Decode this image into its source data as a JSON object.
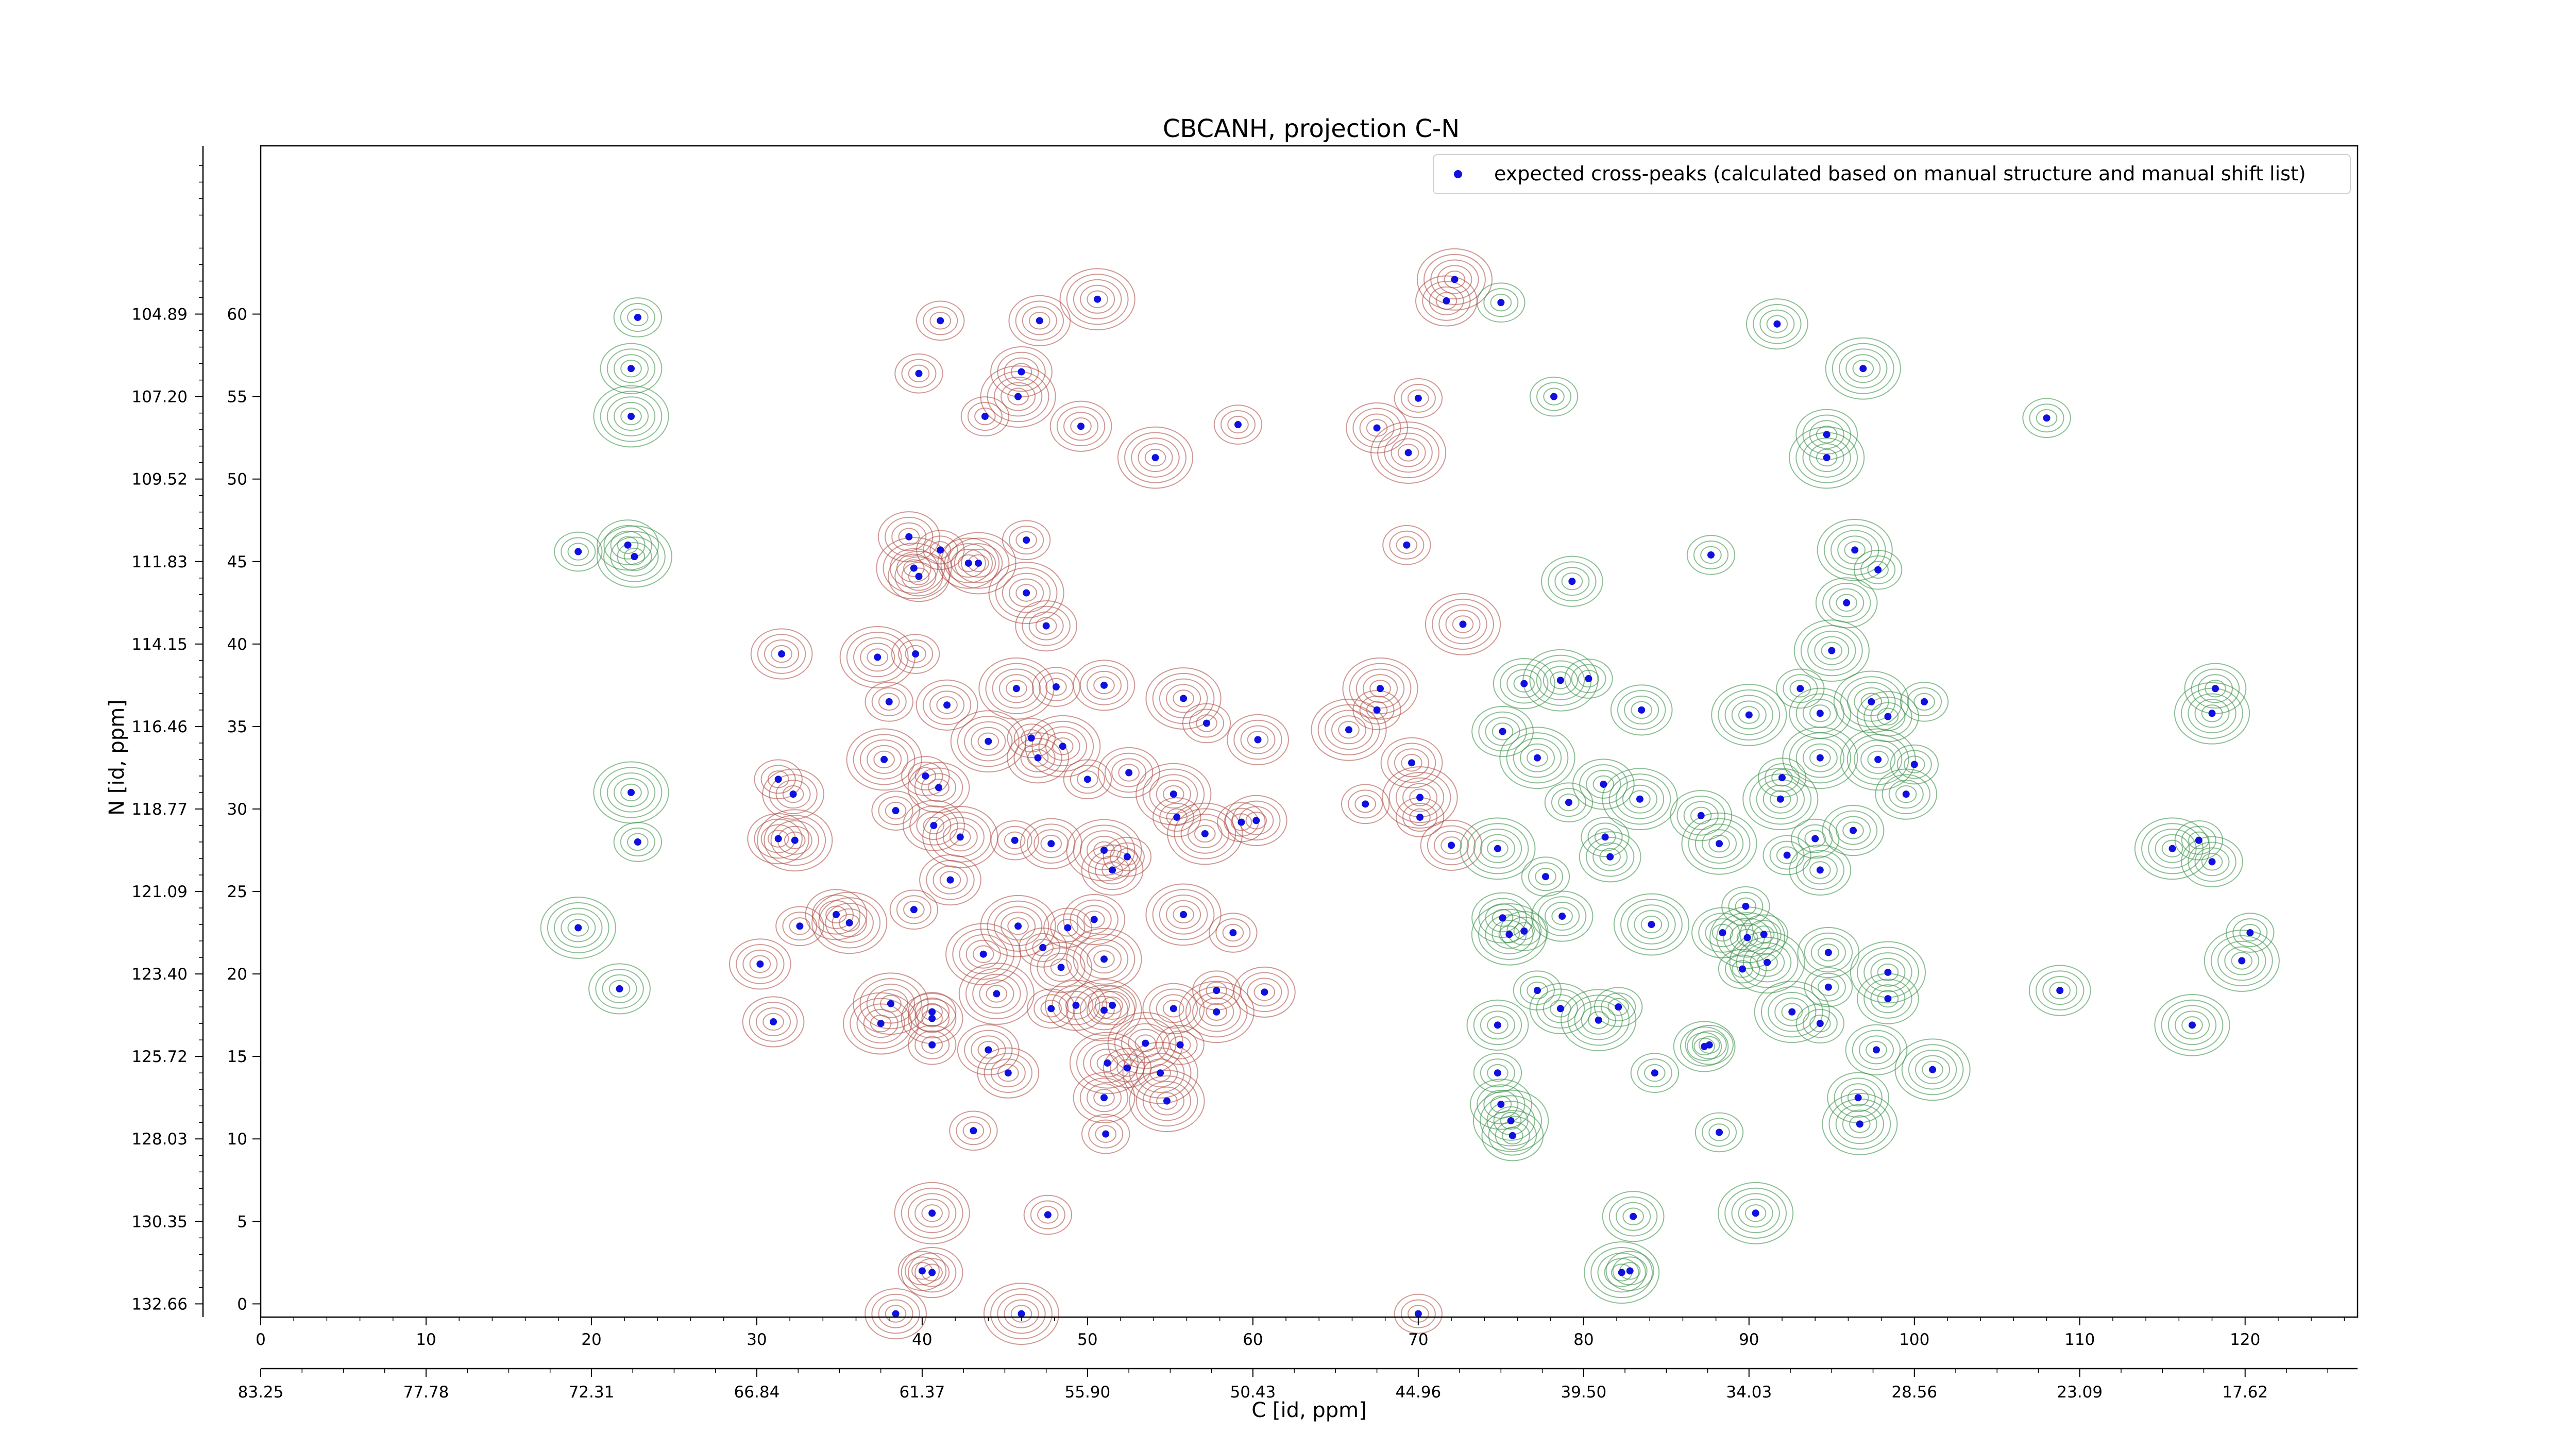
{
  "chart_data": {
    "type": "scatter",
    "title": "CBCANH, projection C-N",
    "xlabel": "C [id, ppm]",
    "ylabel": "N [id, ppm]",
    "xlim": [
      0,
      126.8
    ],
    "ylim": [
      -0.8,
      70.2
    ],
    "x_ticks": [
      0,
      10,
      20,
      30,
      40,
      50,
      60,
      70,
      80,
      90,
      100,
      110,
      120
    ],
    "x_tick_labels_ppm": [
      "83.25",
      "77.78",
      "72.31",
      "66.84",
      "61.37",
      "55.90",
      "50.43",
      "44.96",
      "39.50",
      "34.03",
      "28.56",
      "23.09",
      "17.62"
    ],
    "y_ticks": [
      0,
      5,
      10,
      15,
      20,
      25,
      30,
      35,
      40,
      45,
      50,
      55,
      60
    ],
    "y_tick_labels_ppm": [
      "132.66",
      "130.35",
      "128.03",
      "125.72",
      "123.40",
      "121.09",
      "118.77",
      "116.46",
      "114.15",
      "111.83",
      "109.52",
      "107.20",
      "104.89"
    ],
    "legend": {
      "label": "expected cross-peaks (calculated based on manual structure and manual shift list)",
      "position": "top-right"
    },
    "colors": {
      "peaks": "#1010e0",
      "positive_contour": "#a9433a",
      "negative_contour": "#2e8b3d"
    },
    "series": [
      {
        "name": "expected cross-peaks (calculated based on manual structure and manual shift list)",
        "points": [
          [
            22.8,
            59.8
          ],
          [
            22.4,
            56.7
          ],
          [
            22.4,
            53.8
          ],
          [
            19.2,
            45.6
          ],
          [
            22.2,
            46.0
          ],
          [
            22.6,
            45.3
          ],
          [
            41.1,
            59.6
          ],
          [
            47.1,
            59.6
          ],
          [
            50.6,
            60.9
          ],
          [
            39.8,
            56.4
          ],
          [
            46.0,
            56.5
          ],
          [
            45.8,
            55.0
          ],
          [
            43.8,
            53.8
          ],
          [
            49.6,
            53.2
          ],
          [
            54.1,
            51.3
          ],
          [
            59.1,
            53.3
          ],
          [
            71.7,
            60.8
          ],
          [
            72.2,
            62.1
          ],
          [
            75.0,
            60.7
          ],
          [
            91.7,
            59.4
          ],
          [
            96.9,
            56.7
          ],
          [
            70.0,
            54.9
          ],
          [
            67.5,
            53.1
          ],
          [
            69.4,
            51.6
          ],
          [
            78.2,
            55.0
          ],
          [
            94.7,
            52.7
          ],
          [
            94.7,
            51.3
          ],
          [
            108.0,
            53.7
          ],
          [
            39.2,
            46.5
          ],
          [
            39.5,
            44.6
          ],
          [
            41.1,
            45.7
          ],
          [
            42.8,
            44.9
          ],
          [
            43.4,
            44.9
          ],
          [
            46.3,
            46.3
          ],
          [
            39.8,
            44.1
          ],
          [
            46.3,
            43.1
          ],
          [
            69.3,
            46.0
          ],
          [
            31.5,
            39.4
          ],
          [
            37.3,
            39.2
          ],
          [
            39.6,
            39.4
          ],
          [
            47.5,
            41.1
          ],
          [
            72.7,
            41.2
          ],
          [
            87.7,
            45.4
          ],
          [
            79.3,
            43.8
          ],
          [
            96.4,
            45.7
          ],
          [
            97.8,
            44.5
          ],
          [
            95.9,
            42.5
          ],
          [
            95.0,
            39.6
          ],
          [
            38.0,
            36.5
          ],
          [
            41.5,
            36.3
          ],
          [
            45.7,
            37.3
          ],
          [
            48.1,
            37.4
          ],
          [
            51.0,
            37.5
          ],
          [
            55.8,
            36.7
          ],
          [
            57.2,
            35.2
          ],
          [
            60.3,
            34.2
          ],
          [
            67.7,
            37.3
          ],
          [
            67.5,
            36.0
          ],
          [
            76.4,
            37.6
          ],
          [
            78.6,
            37.8
          ],
          [
            80.3,
            37.9
          ],
          [
            83.5,
            36.0
          ],
          [
            90.0,
            35.7
          ],
          [
            93.1,
            37.3
          ],
          [
            94.3,
            35.8
          ],
          [
            97.4,
            36.5
          ],
          [
            100.6,
            36.5
          ],
          [
            98.4,
            35.6
          ],
          [
            94.3,
            33.1
          ],
          [
            92.0,
            31.9
          ],
          [
            118.2,
            37.3
          ],
          [
            118.0,
            35.8
          ],
          [
            31.3,
            31.8
          ],
          [
            32.2,
            30.9
          ],
          [
            37.7,
            33.0
          ],
          [
            40.2,
            32.0
          ],
          [
            41.0,
            31.3
          ],
          [
            44.0,
            34.1
          ],
          [
            46.6,
            34.3
          ],
          [
            47.0,
            33.1
          ],
          [
            48.5,
            33.8
          ],
          [
            50.0,
            31.8
          ],
          [
            52.5,
            32.2
          ],
          [
            55.2,
            30.9
          ],
          [
            55.4,
            29.5
          ],
          [
            60.2,
            29.3
          ],
          [
            65.8,
            34.8
          ],
          [
            66.8,
            30.3
          ],
          [
            69.6,
            32.8
          ],
          [
            70.1,
            30.7
          ],
          [
            70.1,
            29.5
          ],
          [
            75.1,
            34.7
          ],
          [
            77.2,
            33.1
          ],
          [
            79.1,
            30.4
          ],
          [
            81.2,
            31.5
          ],
          [
            83.4,
            30.6
          ],
          [
            81.3,
            28.3
          ],
          [
            87.1,
            29.6
          ],
          [
            91.9,
            30.6
          ],
          [
            94.0,
            28.2
          ],
          [
            96.3,
            28.7
          ],
          [
            97.8,
            33.0
          ],
          [
            100.0,
            32.7
          ],
          [
            99.5,
            30.9
          ],
          [
            22.4,
            31.0
          ],
          [
            22.8,
            28.0
          ],
          [
            31.3,
            28.2
          ],
          [
            32.3,
            28.1
          ],
          [
            38.4,
            29.9
          ],
          [
            40.7,
            29.0
          ],
          [
            42.3,
            28.3
          ],
          [
            45.6,
            28.1
          ],
          [
            47.8,
            27.9
          ],
          [
            51.0,
            27.5
          ],
          [
            52.4,
            27.1
          ],
          [
            51.5,
            26.3
          ],
          [
            57.1,
            28.5
          ],
          [
            59.3,
            29.2
          ],
          [
            72.0,
            27.8
          ],
          [
            74.8,
            27.6
          ],
          [
            77.7,
            25.9
          ],
          [
            81.6,
            27.1
          ],
          [
            88.2,
            27.9
          ],
          [
            92.3,
            27.2
          ],
          [
            94.3,
            26.3
          ],
          [
            115.6,
            27.6
          ],
          [
            117.2,
            28.1
          ],
          [
            118.0,
            26.8
          ],
          [
            19.2,
            22.8
          ],
          [
            32.6,
            22.9
          ],
          [
            34.8,
            23.6
          ],
          [
            35.6,
            23.1
          ],
          [
            39.5,
            23.9
          ],
          [
            41.7,
            25.7
          ],
          [
            45.8,
            22.9
          ],
          [
            48.8,
            22.8
          ],
          [
            50.4,
            23.3
          ],
          [
            55.8,
            23.6
          ],
          [
            58.8,
            22.5
          ],
          [
            75.1,
            23.4
          ],
          [
            75.5,
            22.4
          ],
          [
            76.4,
            22.6
          ],
          [
            78.7,
            23.5
          ],
          [
            84.1,
            23.0
          ],
          [
            89.8,
            24.1
          ],
          [
            88.4,
            22.5
          ],
          [
            89.9,
            22.2
          ],
          [
            90.9,
            22.4
          ],
          [
            30.2,
            20.6
          ],
          [
            43.7,
            21.2
          ],
          [
            47.3,
            21.6
          ],
          [
            48.4,
            20.4
          ],
          [
            51.0,
            20.9
          ],
          [
            57.8,
            19.0
          ],
          [
            60.7,
            18.9
          ],
          [
            91.1,
            20.7
          ],
          [
            94.8,
            19.2
          ],
          [
            108.8,
            19.0
          ],
          [
            119.8,
            20.8
          ],
          [
            120.3,
            22.5
          ],
          [
            21.7,
            19.1
          ],
          [
            38.1,
            18.2
          ],
          [
            40.6,
            17.7
          ],
          [
            40.6,
            17.3
          ],
          [
            44.5,
            18.8
          ],
          [
            51.5,
            18.1
          ],
          [
            55.2,
            17.9
          ],
          [
            57.8,
            17.7
          ],
          [
            77.2,
            19.0
          ],
          [
            78.6,
            17.9
          ],
          [
            80.9,
            17.2
          ],
          [
            82.1,
            18.0
          ],
          [
            74.8,
            16.9
          ],
          [
            92.6,
            17.7
          ],
          [
            94.3,
            17.0
          ],
          [
            98.4,
            18.5
          ],
          [
            37.5,
            17.0
          ],
          [
            47.8,
            17.9
          ],
          [
            49.3,
            18.1
          ],
          [
            51.0,
            17.8
          ],
          [
            40.6,
            15.7
          ],
          [
            44.0,
            15.4
          ],
          [
            53.5,
            15.8
          ],
          [
            55.6,
            15.7
          ],
          [
            31.0,
            17.1
          ],
          [
            116.8,
            16.9
          ],
          [
            84.3,
            14.0
          ],
          [
            97.7,
            15.4
          ],
          [
            101.1,
            14.2
          ],
          [
            87.6,
            15.7
          ],
          [
            87.3,
            15.6
          ],
          [
            51.2,
            14.6
          ],
          [
            52.4,
            14.3
          ],
          [
            45.2,
            14.0
          ],
          [
            54.4,
            14.0
          ],
          [
            89.6,
            20.3
          ],
          [
            94.8,
            21.3
          ],
          [
            98.4,
            20.1
          ],
          [
            74.8,
            14.0
          ],
          [
            51.0,
            12.5
          ],
          [
            54.8,
            12.3
          ],
          [
            51.1,
            10.3
          ],
          [
            75.0,
            12.1
          ],
          [
            75.6,
            11.1
          ],
          [
            88.2,
            10.4
          ],
          [
            96.6,
            12.5
          ],
          [
            96.7,
            10.9
          ],
          [
            43.1,
            10.5
          ],
          [
            75.7,
            10.2
          ],
          [
            40.6,
            5.5
          ],
          [
            47.6,
            5.4
          ],
          [
            83.0,
            5.3
          ],
          [
            90.4,
            5.5
          ],
          [
            40.0,
            2.0
          ],
          [
            40.6,
            1.9
          ],
          [
            82.3,
            1.9
          ],
          [
            82.8,
            2.0
          ],
          [
            38.4,
            -0.6
          ],
          [
            46.0,
            -0.6
          ],
          [
            70.0,
            -0.6
          ]
        ]
      }
    ]
  }
}
